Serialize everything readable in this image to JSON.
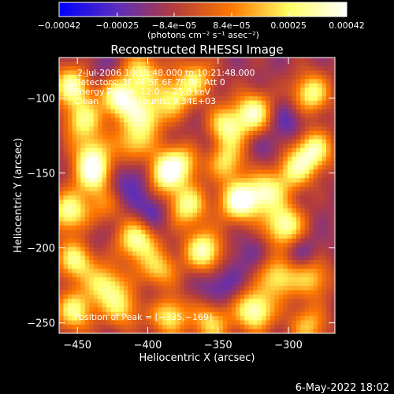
{
  "chart_data": {
    "type": "heatmap",
    "title": "Reconstructed RHESSI Image",
    "xlabel": "Heliocentric X (arcsec)",
    "ylabel": "Heliocentric Y (arcsec)",
    "xlim": [
      -463,
      -267
    ],
    "ylim": [
      -257,
      -73
    ],
    "xticks": [
      -450,
      -400,
      -350,
      -300
    ],
    "xtick_labels": [
      "−450",
      "−400",
      "−350",
      "−300"
    ],
    "yticks": [
      -100,
      -150,
      -200,
      -250
    ],
    "ytick_labels": [
      "−100",
      "−150",
      "−200",
      "−250"
    ],
    "colorbar": {
      "ticks": [
        -0.00042,
        -0.00025,
        -8.4e-05,
        8.4e-05,
        0.00025,
        0.00042
      ],
      "tick_labels": [
        "−0.00042",
        "−0.00025",
        "−8.4e−05",
        "8.4e−05",
        "0.00025",
        "0.00042"
      ],
      "units_label": "(photons cm⁻² s⁻¹ asec⁻²)",
      "range": [
        -0.00042,
        0.00042
      ],
      "colormap": [
        "#0000ff",
        "#5a2dbe",
        "#b43c3c",
        "#ff7800",
        "#ffff64",
        "#ffffff"
      ]
    },
    "grid": false,
    "annotations": [
      "2‑Jul‑2006 10:15:48.000 to 10:21:48.000",
      "Detectors: 3F 4F 5F 6F 7F 8F, Att 0",
      "Energy Range: 12.0 − 25.0 keV",
      "Clean      Total counts: 9.34E+03",
      "Position of Peak = [−335,−169]"
    ],
    "peak": [
      -335,
      -169
    ],
    "peak_value": 0.00042,
    "sources": [
      {
        "x": -454,
        "y": -92,
        "v": 0.00033
      },
      {
        "x": -446,
        "y": -115,
        "v": 0.00025
      },
      {
        "x": -440,
        "y": -137,
        "v": 0.00018
      },
      {
        "x": -438,
        "y": -151,
        "v": 0.00036
      },
      {
        "x": -456,
        "y": -176,
        "v": 0.00032
      },
      {
        "x": -451,
        "y": -208,
        "v": 0.0003
      },
      {
        "x": -452,
        "y": -242,
        "v": 0.00028
      },
      {
        "x": -430,
        "y": -225,
        "v": 0.00026
      },
      {
        "x": -420,
        "y": -100,
        "v": 0.00038
      },
      {
        "x": -402,
        "y": -112,
        "v": 0.00026
      },
      {
        "x": -404,
        "y": -83,
        "v": 0.00024
      },
      {
        "x": -410,
        "y": -130,
        "v": 0.0002
      },
      {
        "x": -408,
        "y": -195,
        "v": 0.00034
      },
      {
        "x": -393,
        "y": -215,
        "v": 0.00022
      },
      {
        "x": -418,
        "y": -240,
        "v": 0.0002
      },
      {
        "x": -388,
        "y": -150,
        "v": 0.0004
      },
      {
        "x": -372,
        "y": -172,
        "v": 0.0003
      },
      {
        "x": -374,
        "y": -142,
        "v": 0.00018
      },
      {
        "x": -382,
        "y": -100,
        "v": 0.00022
      },
      {
        "x": -366,
        "y": -87,
        "v": 0.0002
      },
      {
        "x": -385,
        "y": -245,
        "v": 0.00028
      },
      {
        "x": -345,
        "y": -120,
        "v": 0.0003
      },
      {
        "x": -335,
        "y": -169,
        "v": 0.00042
      },
      {
        "x": -360,
        "y": -202,
        "v": 0.00036
      },
      {
        "x": -344,
        "y": -142,
        "v": 0.00022
      },
      {
        "x": -325,
        "y": -110,
        "v": 0.00034
      },
      {
        "x": -316,
        "y": -163,
        "v": 0.0003
      },
      {
        "x": -303,
        "y": -185,
        "v": 0.00036
      },
      {
        "x": -296,
        "y": -148,
        "v": 0.00024
      },
      {
        "x": -282,
        "y": -135,
        "v": 0.00032
      },
      {
        "x": -284,
        "y": -97,
        "v": 0.0003
      },
      {
        "x": -324,
        "y": -242,
        "v": 0.00038
      },
      {
        "x": -307,
        "y": -220,
        "v": 0.00026
      },
      {
        "x": -283,
        "y": -220,
        "v": 0.0002
      },
      {
        "x": -286,
        "y": -252,
        "v": 0.00018
      },
      {
        "x": -355,
        "y": -250,
        "v": 0.00022
      },
      {
        "x": -430,
        "y": -170,
        "v": 0.00012
      }
    ],
    "sinks": [
      {
        "x": -425,
        "y": -160,
        "v": -0.0003
      },
      {
        "x": -405,
        "y": -150,
        "v": -0.00026
      },
      {
        "x": -398,
        "y": -175,
        "v": -0.00028
      },
      {
        "x": -358,
        "y": -130,
        "v": -0.00024
      },
      {
        "x": -350,
        "y": -225,
        "v": -0.00026
      },
      {
        "x": -332,
        "y": -205,
        "v": -0.0002
      },
      {
        "x": -300,
        "y": -115,
        "v": -0.00026
      },
      {
        "x": -290,
        "y": -205,
        "v": -0.00024
      },
      {
        "x": -433,
        "y": -82,
        "v": -0.0002
      },
      {
        "x": -395,
        "y": -232,
        "v": -0.00022
      },
      {
        "x": -315,
        "y": -135,
        "v": -0.0002
      },
      {
        "x": -440,
        "y": -195,
        "v": -0.00018
      }
    ]
  },
  "footer": {
    "date": "6‑May‑2022 18:02"
  }
}
